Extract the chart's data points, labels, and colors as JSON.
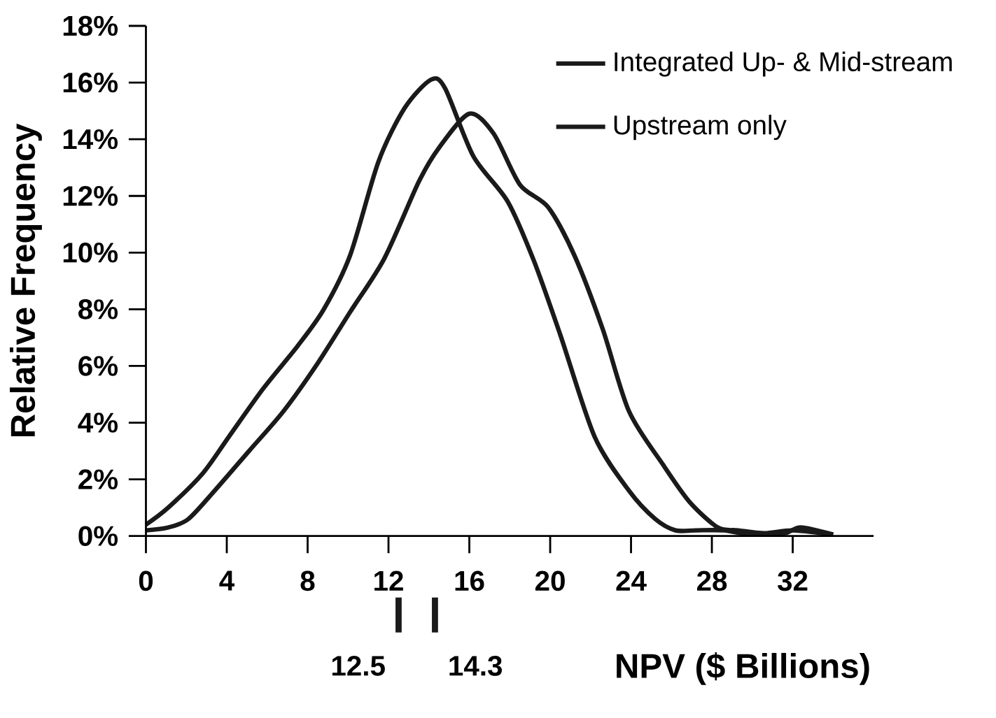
{
  "chart_data": {
    "type": "line",
    "xlabel": "NPV ($ Billions)",
    "ylabel": "Relative Frequency",
    "xlim": [
      0,
      36
    ],
    "xticks": [
      0,
      4,
      8,
      12,
      16,
      20,
      24,
      28,
      32
    ],
    "ylim": [
      0,
      18
    ],
    "yticks": [
      {
        "value": 0,
        "label": "0%"
      },
      {
        "value": 2,
        "label": "2%"
      },
      {
        "value": 4,
        "label": "4%"
      },
      {
        "value": 6,
        "label": "6%"
      },
      {
        "value": 8,
        "label": "8%"
      },
      {
        "value": 10,
        "label": "10%"
      },
      {
        "value": 12,
        "label": "12%"
      },
      {
        "value": 14,
        "label": "14%"
      },
      {
        "value": 16,
        "label": "16%"
      },
      {
        "value": 18,
        "label": "18%"
      }
    ],
    "legend": "top right",
    "series": [
      {
        "name": "Integrated Up- & Mid-stream",
        "color": "#1a1a1a",
        "x": [
          0,
          1.1,
          2.1,
          3.4,
          5.1,
          6.8,
          8.5,
          10.1,
          11.8,
          13.5,
          14.5,
          16,
          17.2,
          18.5,
          19.9,
          21.2,
          22.6,
          23.9,
          25.6,
          26.9,
          28.3,
          29.3,
          30.6,
          32,
          34
        ],
        "values": [
          0.2,
          0.3,
          0.6,
          1.6,
          3.0,
          4.4,
          6.1,
          7.9,
          9.8,
          12.5,
          13.7,
          14.9,
          14.2,
          12.4,
          11.6,
          9.9,
          7.3,
          4.4,
          2.5,
          1.2,
          0.3,
          0.2,
          0.1,
          0.2,
          0.05
        ]
      },
      {
        "name": "Upstream only",
        "color": "#1a1a1a",
        "x": [
          0,
          1.1,
          2.8,
          4.1,
          5.8,
          7.5,
          8.8,
          10.1,
          11.5,
          12.8,
          14.1,
          14.8,
          16.2,
          17.9,
          19.2,
          20.5,
          22.2,
          23.9,
          25.2,
          26.2,
          27.2,
          28.6,
          29.9,
          31.6,
          32.4,
          34
        ],
        "values": [
          0.4,
          1.0,
          2.2,
          3.5,
          5.2,
          6.7,
          8.0,
          9.9,
          13.2,
          15.1,
          16.1,
          15.8,
          13.4,
          11.8,
          9.7,
          7.1,
          3.5,
          1.6,
          0.6,
          0.2,
          0.2,
          0.2,
          0.05,
          0.1,
          0.3,
          0.05
        ]
      }
    ],
    "ref_lines": [
      {
        "axis": "x",
        "value": 12.5,
        "label": "12.5",
        "color": "#1a1a1a"
      },
      {
        "axis": "x",
        "value": 14.3,
        "label": "14.3",
        "color": "#1a1a1a"
      }
    ]
  }
}
